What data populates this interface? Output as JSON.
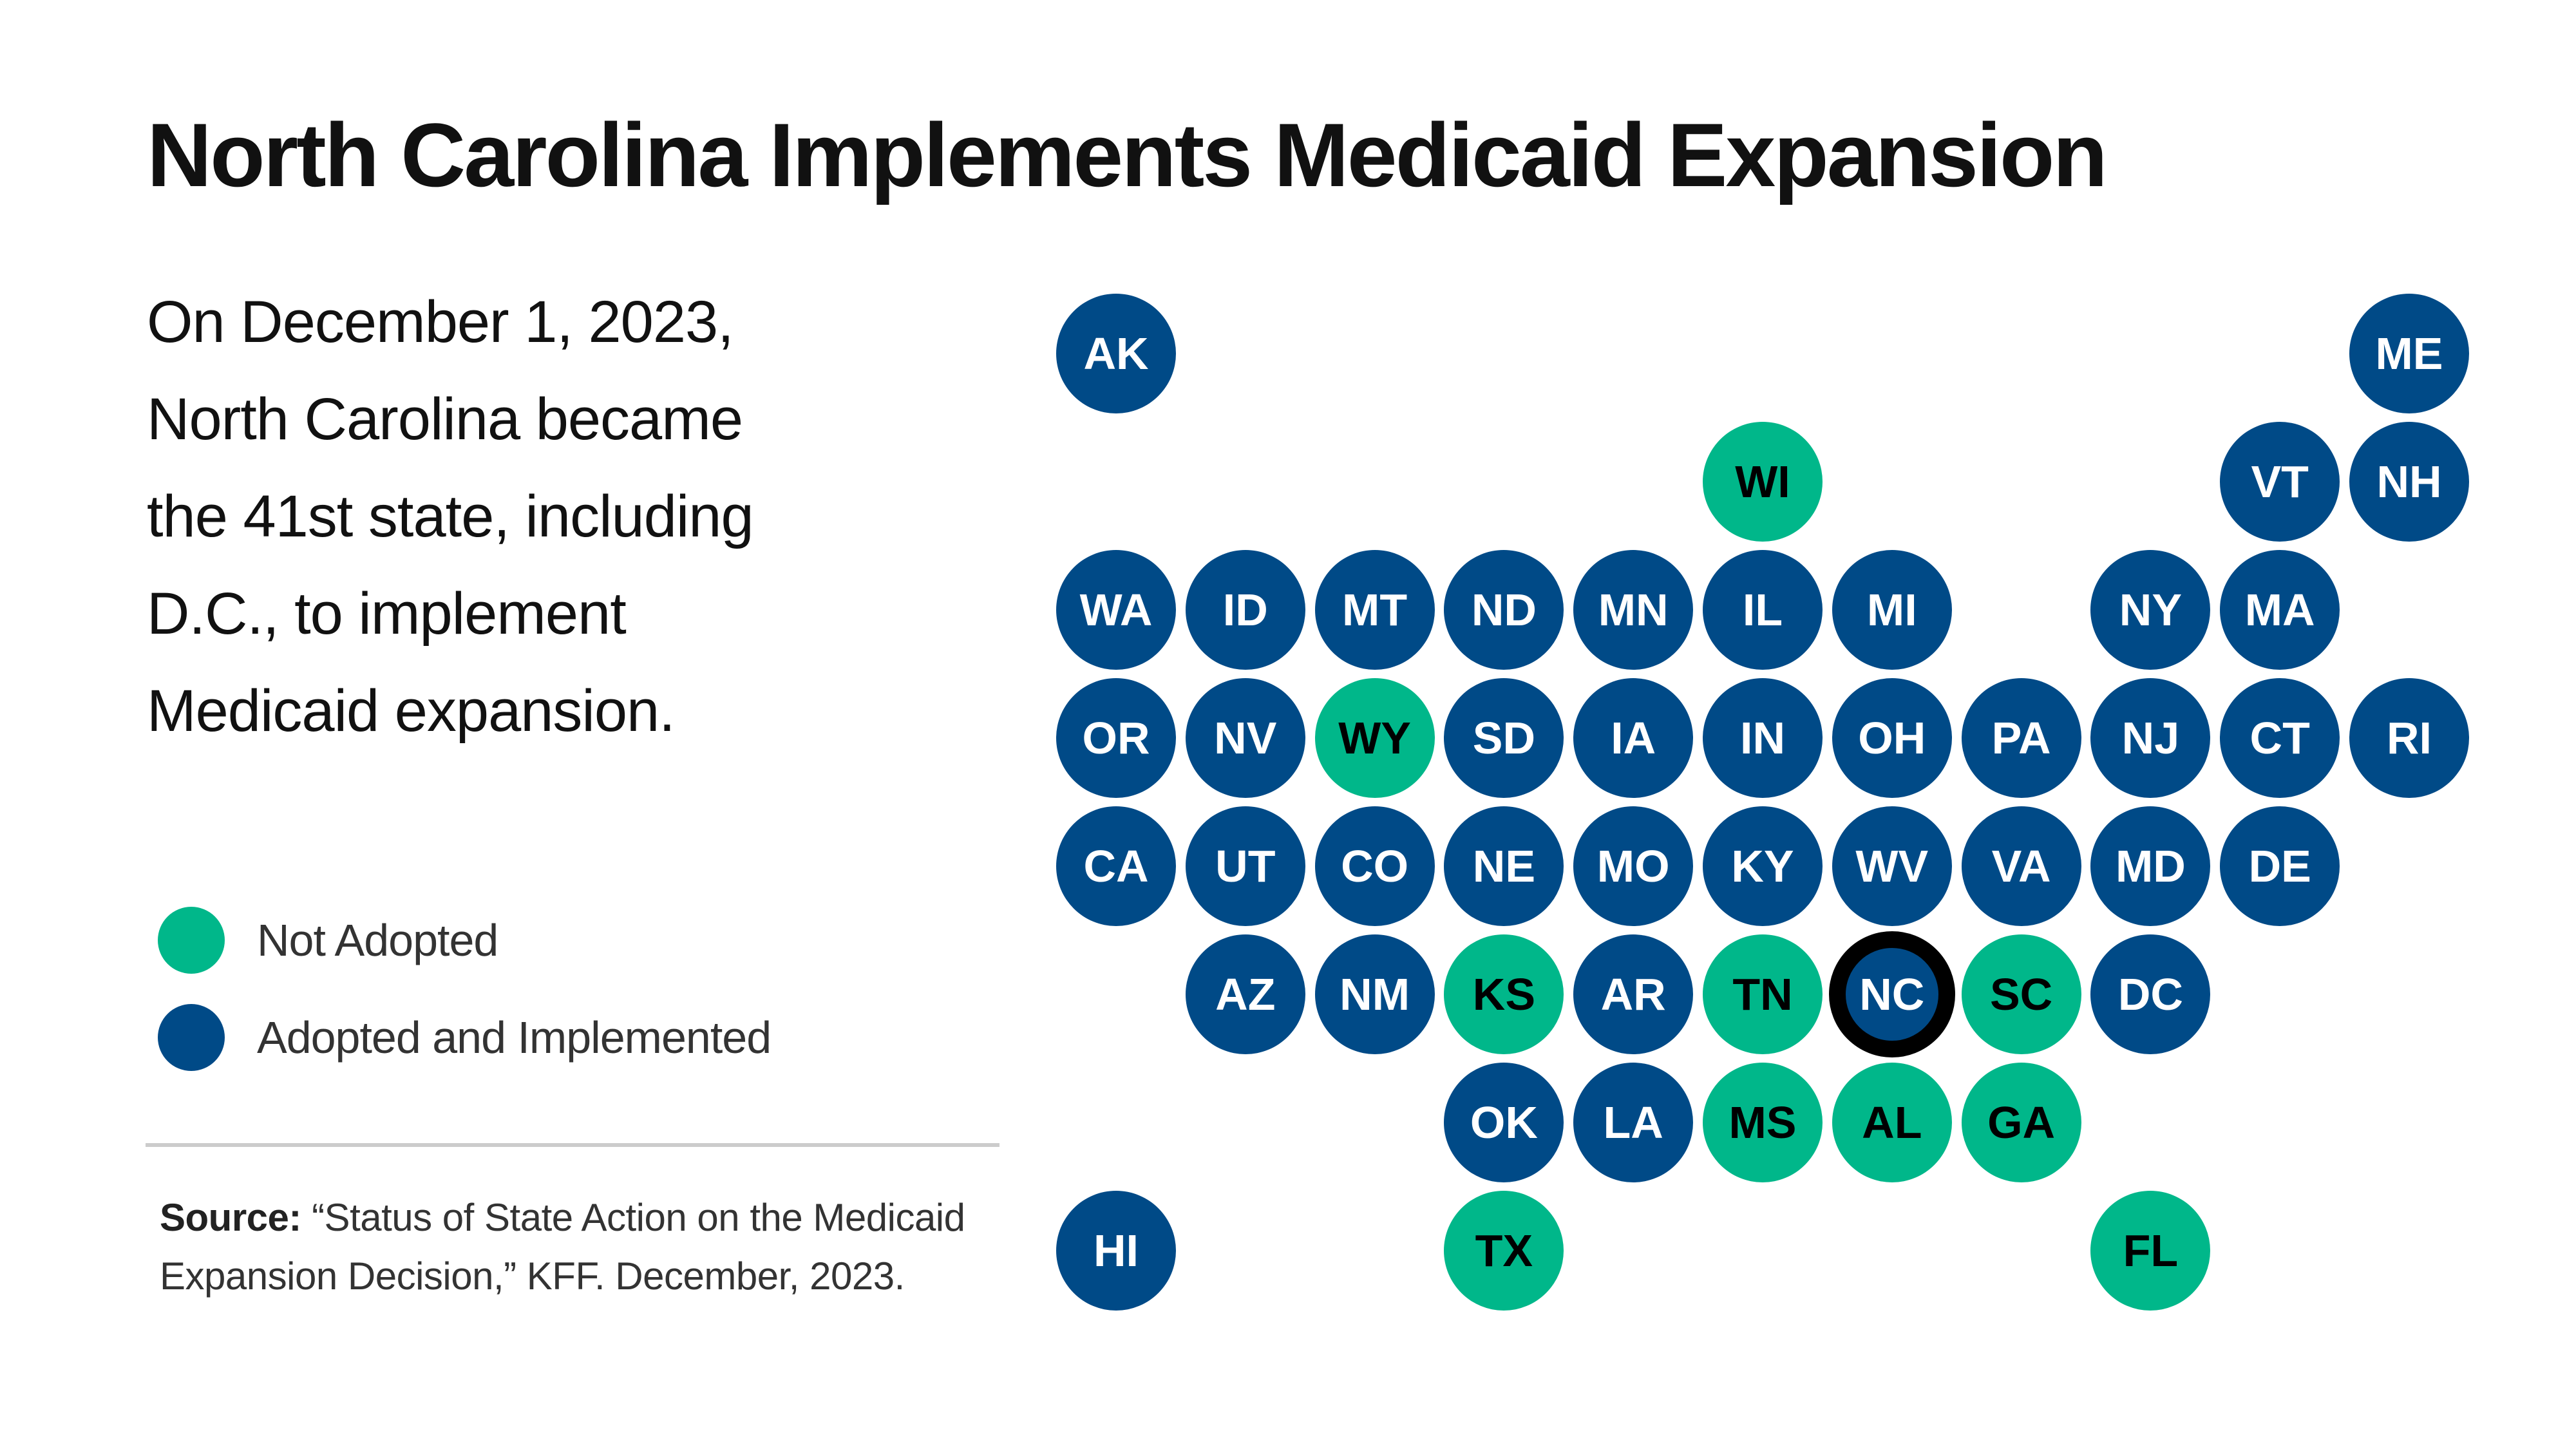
{
  "title": "North Carolina Implements Medicaid Expansion",
  "description": [
    "On December 1, 2023,",
    "North Carolina became",
    "the 41st state, including",
    "D.C., to implement",
    "Medicaid expansion."
  ],
  "legend": [
    {
      "label": "Not Adopted",
      "color": "#00B78A"
    },
    {
      "label": "Adopted and Implemented",
      "color": "#004A87"
    }
  ],
  "source": {
    "label": "Source:",
    "text": "“Status of State Action on the Medicaid Expansion Decision,” KFF. December, 2023."
  },
  "highlighted_state": "NC",
  "states": [
    {
      "abbr": "AK",
      "status": "adopted"
    },
    {
      "abbr": "ME",
      "status": "adopted"
    },
    {
      "abbr": "WI",
      "status": "not_adopted"
    },
    {
      "abbr": "VT",
      "status": "adopted"
    },
    {
      "abbr": "NH",
      "status": "adopted"
    },
    {
      "abbr": "WA",
      "status": "adopted"
    },
    {
      "abbr": "ID",
      "status": "adopted"
    },
    {
      "abbr": "MT",
      "status": "adopted"
    },
    {
      "abbr": "ND",
      "status": "adopted"
    },
    {
      "abbr": "MN",
      "status": "adopted"
    },
    {
      "abbr": "IL",
      "status": "adopted"
    },
    {
      "abbr": "MI",
      "status": "adopted"
    },
    {
      "abbr": "NY",
      "status": "adopted"
    },
    {
      "abbr": "MA",
      "status": "adopted"
    },
    {
      "abbr": "OR",
      "status": "adopted"
    },
    {
      "abbr": "NV",
      "status": "adopted"
    },
    {
      "abbr": "WY",
      "status": "not_adopted"
    },
    {
      "abbr": "SD",
      "status": "adopted"
    },
    {
      "abbr": "IA",
      "status": "adopted"
    },
    {
      "abbr": "IN",
      "status": "adopted"
    },
    {
      "abbr": "OH",
      "status": "adopted"
    },
    {
      "abbr": "PA",
      "status": "adopted"
    },
    {
      "abbr": "NJ",
      "status": "adopted"
    },
    {
      "abbr": "CT",
      "status": "adopted"
    },
    {
      "abbr": "RI",
      "status": "adopted"
    },
    {
      "abbr": "CA",
      "status": "adopted"
    },
    {
      "abbr": "UT",
      "status": "adopted"
    },
    {
      "abbr": "CO",
      "status": "adopted"
    },
    {
      "abbr": "NE",
      "status": "adopted"
    },
    {
      "abbr": "MO",
      "status": "adopted"
    },
    {
      "abbr": "KY",
      "status": "adopted"
    },
    {
      "abbr": "WV",
      "status": "adopted"
    },
    {
      "abbr": "VA",
      "status": "adopted"
    },
    {
      "abbr": "MD",
      "status": "adopted"
    },
    {
      "abbr": "DE",
      "status": "adopted"
    },
    {
      "abbr": "AZ",
      "status": "adopted"
    },
    {
      "abbr": "NM",
      "status": "adopted"
    },
    {
      "abbr": "KS",
      "status": "not_adopted"
    },
    {
      "abbr": "AR",
      "status": "adopted"
    },
    {
      "abbr": "TN",
      "status": "not_adopted"
    },
    {
      "abbr": "NC",
      "status": "adopted"
    },
    {
      "abbr": "SC",
      "status": "not_adopted"
    },
    {
      "abbr": "DC",
      "status": "adopted"
    },
    {
      "abbr": "OK",
      "status": "adopted"
    },
    {
      "abbr": "LA",
      "status": "adopted"
    },
    {
      "abbr": "MS",
      "status": "not_adopted"
    },
    {
      "abbr": "AL",
      "status": "not_adopted"
    },
    {
      "abbr": "GA",
      "status": "not_adopted"
    },
    {
      "abbr": "HI",
      "status": "adopted"
    },
    {
      "abbr": "TX",
      "status": "not_adopted"
    },
    {
      "abbr": "FL",
      "status": "not_adopted"
    }
  ]
}
